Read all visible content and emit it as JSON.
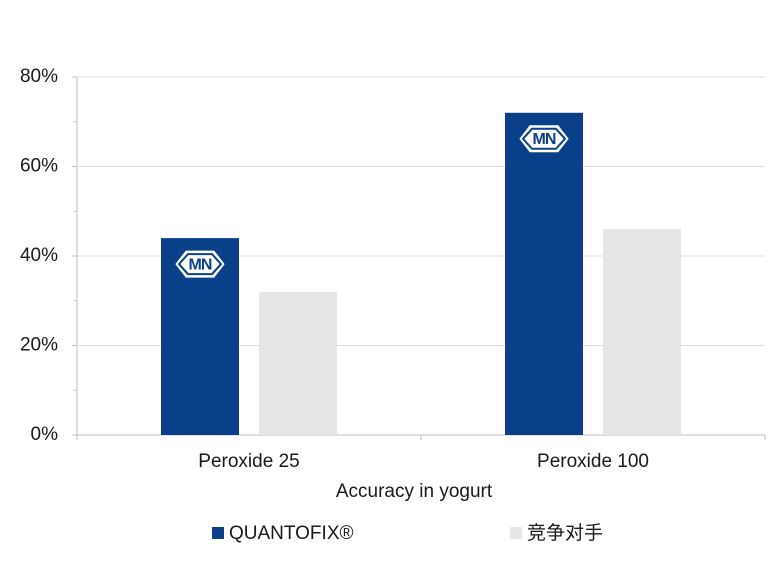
{
  "chart_data": {
    "type": "bar",
    "x_label": "Accuracy in yogurt",
    "categories": [
      "Peroxide 25",
      "Peroxide 100"
    ],
    "series": [
      {
        "name": "QUANTOFIX®",
        "color": "#0a3f8a",
        "values": [
          44,
          72
        ]
      },
      {
        "name": "竞争对手",
        "color": "#e6e6e6",
        "values": [
          32,
          46
        ]
      }
    ],
    "bar_logo": "MN",
    "ylim": [
      0,
      80
    ],
    "yticks": [
      {
        "value": 0,
        "label": "0%"
      },
      {
        "value": 20,
        "label": "20%"
      },
      {
        "value": 40,
        "label": "40%"
      },
      {
        "value": 60,
        "label": "60%"
      },
      {
        "value": 80,
        "label": "80%"
      }
    ],
    "grid": true,
    "legend": "bottom"
  }
}
